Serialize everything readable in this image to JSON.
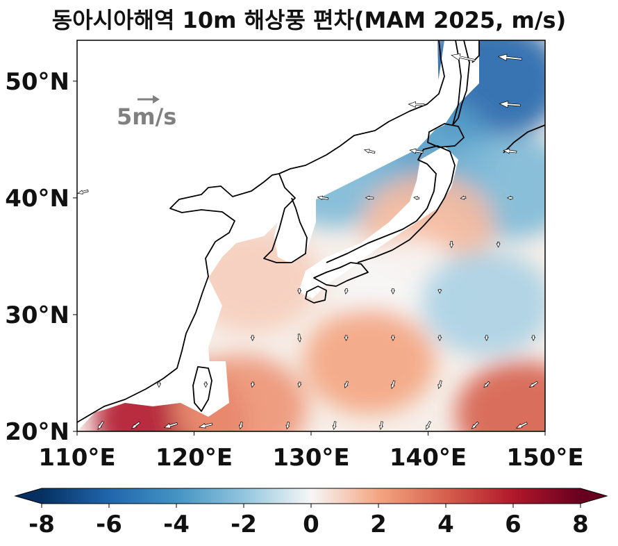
{
  "title": "동아시아해역 10m 해상풍 편차(MAM 2025, m/s)",
  "map": {
    "lon_range": [
      110,
      150
    ],
    "lat_range": [
      20,
      53.5
    ],
    "x_ticks": [
      {
        "value": 110,
        "label": "110°E"
      },
      {
        "value": 120,
        "label": "120°E"
      },
      {
        "value": 130,
        "label": "130°E"
      },
      {
        "value": 140,
        "label": "140°E"
      },
      {
        "value": 150,
        "label": "150°E"
      }
    ],
    "y_ticks": [
      {
        "value": 20,
        "label": "20°N"
      },
      {
        "value": 30,
        "label": "30°N"
      },
      {
        "value": 40,
        "label": "40°N"
      },
      {
        "value": 50,
        "label": "50°N"
      }
    ],
    "reference_arrow": {
      "magnitude": 5,
      "label": "5m/s",
      "color": "#808080"
    }
  },
  "colorbar": {
    "min": -8,
    "max": 8,
    "colormap": "RdBu_r",
    "extend": "both",
    "ticks": [
      {
        "value": -8,
        "label": "-8"
      },
      {
        "value": -6,
        "label": "-6"
      },
      {
        "value": -4,
        "label": "-4"
      },
      {
        "value": -2,
        "label": "-2"
      },
      {
        "value": 0,
        "label": "0"
      },
      {
        "value": 2,
        "label": "2"
      },
      {
        "value": 4,
        "label": "4"
      },
      {
        "value": 6,
        "label": "6"
      },
      {
        "value": 8,
        "label": "8"
      }
    ]
  },
  "chart_data": {
    "type": "heatmap",
    "description_units": "wind speed anomaly (m/s)",
    "anomaly_field": [
      {
        "lon": 145,
        "lat": 50,
        "value": -6
      },
      {
        "lon": 140,
        "lat": 44,
        "value": -3.5
      },
      {
        "lon": 132,
        "lat": 42,
        "value": -2.5
      },
      {
        "lon": 147,
        "lat": 41,
        "value": -2.5
      },
      {
        "lon": 140,
        "lat": 37.5,
        "value": 1.5
      },
      {
        "lon": 125,
        "lat": 33,
        "value": 1
      },
      {
        "lon": 138,
        "lat": 32,
        "value": 0
      },
      {
        "lon": 145,
        "lat": 31,
        "value": -1.5
      },
      {
        "lon": 135,
        "lat": 26,
        "value": 2
      },
      {
        "lon": 118,
        "lat": 21,
        "value": 6
      },
      {
        "lon": 148,
        "lat": 21.5,
        "value": 4
      },
      {
        "lon": 124,
        "lat": 22,
        "value": 2.5
      }
    ],
    "vectors": [
      {
        "lon": 151,
        "lat": 52,
        "u": -4.5,
        "v": 0.3
      },
      {
        "lon": 147,
        "lat": 52,
        "u": -4.5,
        "v": 0.5
      },
      {
        "lon": 143,
        "lat": 52,
        "u": -4.5,
        "v": 1.0
      },
      {
        "lon": 139,
        "lat": 48,
        "u": -3.0,
        "v": 0.1
      },
      {
        "lon": 147,
        "lat": 48,
        "u": -4.0,
        "v": 0.3
      },
      {
        "lon": 151,
        "lat": 48,
        "u": -3.5,
        "v": 0.2
      },
      {
        "lon": 139,
        "lat": 44,
        "u": -2.5,
        "v": 0.4
      },
      {
        "lon": 135,
        "lat": 44,
        "u": -2.0,
        "v": 0.5
      },
      {
        "lon": 147,
        "lat": 44,
        "u": -2.5,
        "v": 0.3
      },
      {
        "lon": 151,
        "lat": 44,
        "u": -2.5,
        "v": 0.1
      },
      {
        "lon": 110.5,
        "lat": 40.5,
        "u": -2.0,
        "v": -0.5
      },
      {
        "lon": 131,
        "lat": 40,
        "u": -2.0,
        "v": 0.3
      },
      {
        "lon": 135,
        "lat": 40,
        "u": -1.5,
        "v": 0.1
      },
      {
        "lon": 139,
        "lat": 40,
        "u": -1.0,
        "v": 0.2
      },
      {
        "lon": 143,
        "lat": 40,
        "u": -1.0,
        "v": -0.2
      },
      {
        "lon": 147,
        "lat": 40,
        "u": -1.0,
        "v": 0.0
      },
      {
        "lon": 151,
        "lat": 40,
        "u": -1.5,
        "v": 0.0
      },
      {
        "lon": 142,
        "lat": 36,
        "u": 0.0,
        "v": -1.2
      },
      {
        "lon": 146,
        "lat": 36,
        "u": 0.0,
        "v": -1.0
      },
      {
        "lon": 129,
        "lat": 32,
        "u": 0.0,
        "v": -1.0
      },
      {
        "lon": 133,
        "lat": 32,
        "u": -0.2,
        "v": -1.0
      },
      {
        "lon": 137,
        "lat": 32,
        "u": 0.0,
        "v": -1.0
      },
      {
        "lon": 141,
        "lat": 32,
        "u": 0.0,
        "v": -0.8
      },
      {
        "lon": 125,
        "lat": 28,
        "u": 0.0,
        "v": -1.0
      },
      {
        "lon": 129,
        "lat": 28,
        "u": 0.2,
        "v": -1.5
      },
      {
        "lon": 133,
        "lat": 28,
        "u": 0.0,
        "v": -1.0
      },
      {
        "lon": 137,
        "lat": 28,
        "u": 0.0,
        "v": -1.0
      },
      {
        "lon": 141,
        "lat": 28,
        "u": 0.0,
        "v": -1.0
      },
      {
        "lon": 145,
        "lat": 28,
        "u": 0.0,
        "v": -1.0
      },
      {
        "lon": 149,
        "lat": 28,
        "u": 0.0,
        "v": -1.0
      },
      {
        "lon": 117,
        "lat": 24,
        "u": 0.0,
        "v": -1.0
      },
      {
        "lon": 121,
        "lat": 24,
        "u": 0.0,
        "v": -1.0
      },
      {
        "lon": 125,
        "lat": 24,
        "u": -0.2,
        "v": -1.0
      },
      {
        "lon": 129,
        "lat": 24,
        "u": -0.2,
        "v": -1.0
      },
      {
        "lon": 133,
        "lat": 24,
        "u": -0.5,
        "v": -1.2
      },
      {
        "lon": 137,
        "lat": 24,
        "u": -0.5,
        "v": -1.5
      },
      {
        "lon": 141,
        "lat": 24,
        "u": -0.5,
        "v": -1.5
      },
      {
        "lon": 145,
        "lat": 24,
        "u": -1.0,
        "v": -1.0
      },
      {
        "lon": 149,
        "lat": 24,
        "u": -1.5,
        "v": -1.0
      },
      {
        "lon": 112,
        "lat": 20.5,
        "u": -1.0,
        "v": -1.5
      },
      {
        "lon": 115,
        "lat": 20.5,
        "u": -1.5,
        "v": -1.2
      },
      {
        "lon": 118,
        "lat": 20.5,
        "u": -2.5,
        "v": -0.8
      },
      {
        "lon": 121,
        "lat": 20.5,
        "u": -2.5,
        "v": -0.6
      },
      {
        "lon": 124,
        "lat": 20.5,
        "u": -0.3,
        "v": -1.3
      },
      {
        "lon": 128,
        "lat": 20.5,
        "u": -0.3,
        "v": -1.3
      },
      {
        "lon": 132,
        "lat": 20.5,
        "u": -0.3,
        "v": -1.5
      },
      {
        "lon": 136,
        "lat": 20.5,
        "u": -0.3,
        "v": -1.5
      },
      {
        "lon": 140,
        "lat": 20.5,
        "u": -0.8,
        "v": -1.5
      },
      {
        "lon": 144,
        "lat": 20.5,
        "u": -1.2,
        "v": -1.2
      },
      {
        "lon": 148,
        "lat": 20.5,
        "u": -2.0,
        "v": -1.0
      }
    ]
  }
}
